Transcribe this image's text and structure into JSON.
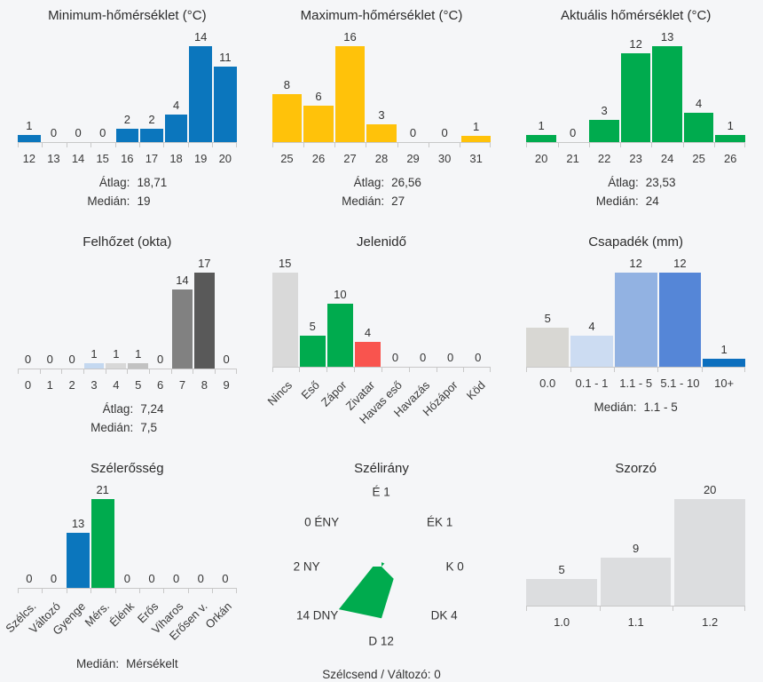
{
  "background": "#f5f6f8",
  "text_color": "#333333",
  "axis_color": "#c8c8c8",
  "chart_data": [
    {
      "type": "bar",
      "title": "Minimum-hőmérséklet (°C)",
      "categories": [
        "12",
        "13",
        "14",
        "15",
        "16",
        "17",
        "18",
        "19",
        "20"
      ],
      "values": [
        1,
        0,
        0,
        0,
        2,
        2,
        4,
        14,
        11
      ],
      "bar_color": "#0b76bd",
      "stats": [
        {
          "label": "Átlag:",
          "value": "18,71"
        },
        {
          "label": "Medián:",
          "value": "19"
        }
      ],
      "layout": {
        "max_bar_height": 108,
        "rotate_labels": false
      }
    },
    {
      "type": "bar",
      "title": "Maximum-hőmérséklet (°C)",
      "categories": [
        "25",
        "26",
        "27",
        "28",
        "29",
        "30",
        "31"
      ],
      "values": [
        8,
        6,
        16,
        3,
        0,
        0,
        1
      ],
      "bar_color": "#ffc20a",
      "stats": [
        {
          "label": "Átlag:",
          "value": "26,56"
        },
        {
          "label": "Medián:",
          "value": "27"
        }
      ],
      "layout": {
        "max_bar_height": 108,
        "rotate_labels": false
      }
    },
    {
      "type": "bar",
      "title": "Aktuális hőmérséklet (°C)",
      "categories": [
        "20",
        "21",
        "22",
        "23",
        "24",
        "25",
        "26"
      ],
      "values": [
        1,
        0,
        3,
        12,
        13,
        4,
        1
      ],
      "bar_color": "#00ab4e",
      "stats": [
        {
          "label": "Átlag:",
          "value": "23,53"
        },
        {
          "label": "Medián:",
          "value": "24"
        }
      ],
      "layout": {
        "max_bar_height": 108,
        "rotate_labels": false
      }
    },
    {
      "type": "bar",
      "title": "Felhőzet (okta)",
      "categories": [
        "0",
        "1",
        "2",
        "3",
        "4",
        "5",
        "6",
        "7",
        "8",
        "9"
      ],
      "values": [
        0,
        0,
        0,
        1,
        1,
        1,
        0,
        14,
        17,
        0
      ],
      "bar_colors": [
        "",
        "",
        "",
        "#c4d8f0",
        "#d8d8d8",
        "#c2c2c2",
        "",
        "#818181",
        "#595959",
        ""
      ],
      "stats": [
        {
          "label": "Átlag:",
          "value": "7,24"
        },
        {
          "label": "Medián:",
          "value": "7,5"
        }
      ],
      "layout": {
        "max_bar_height": 108,
        "rotate_labels": false
      }
    },
    {
      "type": "bar",
      "title": "Jelenidő",
      "categories": [
        "Nincs",
        "Eső",
        "Zápor",
        "Zivatar",
        "Havas eső",
        "Havazás",
        "Hózápor",
        "Köd"
      ],
      "values": [
        15,
        5,
        10,
        4,
        0,
        0,
        0,
        0
      ],
      "bar_colors": [
        "#d9d9d9",
        "#00ab4e",
        "#00ab4e",
        "#f9544e",
        "",
        "",
        "",
        ""
      ],
      "layout": {
        "max_bar_height": 106,
        "rotate_labels": true,
        "label_height": 72
      }
    },
    {
      "type": "bar",
      "title": "Csapadék (mm)",
      "categories": [
        "0.0",
        "0.1 - 1",
        "1.1 - 5",
        "5.1 - 10",
        "10+"
      ],
      "values": [
        5,
        4,
        12,
        12,
        1
      ],
      "bar_colors": [
        "#d8d7d3",
        "#ccdcf2",
        "#92b2e2",
        "#5586d7",
        "#0c6fbe"
      ],
      "stats": [
        {
          "label": "Medián:",
          "value": "1.1 - 5"
        }
      ],
      "layout": {
        "max_bar_height": 106,
        "rotate_labels": false
      }
    },
    {
      "type": "bar",
      "title": "Szélerősség",
      "categories": [
        "Szélcs.",
        "Változó",
        "Gyenge",
        "Mérs.",
        "Élénk",
        "Erős",
        "Viharos",
        "Erősen v.",
        "Orkán"
      ],
      "values": [
        0,
        0,
        13,
        21,
        0,
        0,
        0,
        0,
        0
      ],
      "bar_colors": [
        "",
        "",
        "#0b76bd",
        "#00ab4e",
        "",
        "",
        "",
        "",
        ""
      ],
      "stats": [
        {
          "label": "Medián:",
          "value": "Mérsékelt"
        }
      ],
      "layout": {
        "max_bar_height": 100,
        "rotate_labels": true,
        "label_height": 58
      }
    },
    {
      "type": "radar",
      "title": "Szélirány",
      "color": "#00ab4e",
      "directions": [
        {
          "name": "É",
          "value": 1,
          "label": "É 1"
        },
        {
          "name": "ÉK",
          "value": 1,
          "label": "ÉK 1"
        },
        {
          "name": "K",
          "value": 0,
          "label": "K 0"
        },
        {
          "name": "DK",
          "value": 4,
          "label": "DK 4"
        },
        {
          "name": "D",
          "value": 12,
          "label": "D 12"
        },
        {
          "name": "DNY",
          "value": 14,
          "label": "14 DNY"
        },
        {
          "name": "NY",
          "value": 2,
          "label": "2 NY"
        },
        {
          "name": "ÉNY",
          "value": 0,
          "label": "0 ÉNY"
        }
      ],
      "footer": "Szélcsend / Változó: 0"
    },
    {
      "type": "bar",
      "title": "Szorzó",
      "categories": [
        "1.0",
        "1.1",
        "1.2"
      ],
      "values": [
        5,
        9,
        20
      ],
      "bar_color": "#dcdddf",
      "layout": {
        "max_bar_height": 120,
        "rotate_labels": false,
        "gap": 4
      }
    }
  ]
}
